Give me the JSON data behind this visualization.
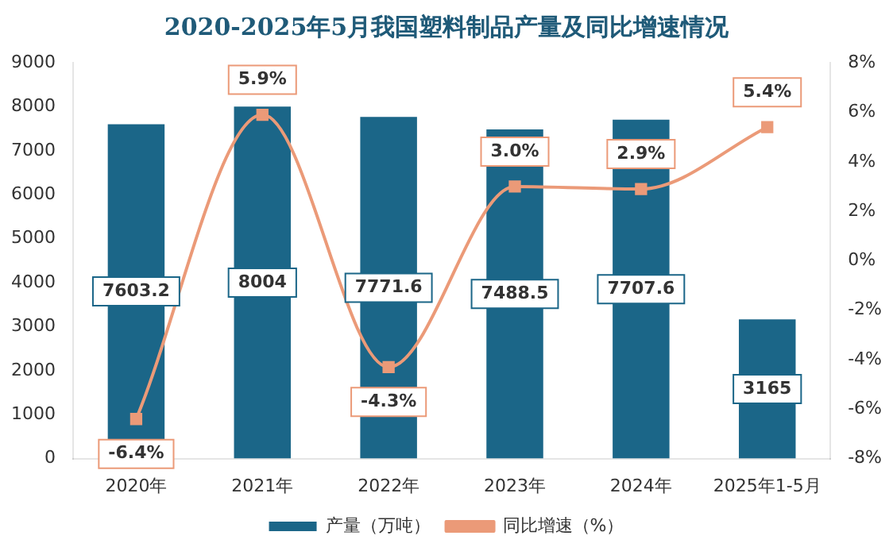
{
  "chart_data": {
    "type": "bar",
    "title": "2020-2025年5月我国塑料制品产量及同比增速情况",
    "categories": [
      "2020年",
      "2021年",
      "2022年",
      "2023年",
      "2024年",
      "2025年1-5月"
    ],
    "series": [
      {
        "name": "产量（万吨）",
        "color": "#1b6688",
        "values": [
          7603.2,
          8004,
          7771.6,
          7488.5,
          7707.6,
          3165
        ]
      },
      {
        "name": "同比增速（%）",
        "type": "line",
        "axis": "y2",
        "color": "#eb9a78",
        "marker": "square",
        "values": [
          -6.4,
          5.9,
          -4.3,
          3.0,
          2.9,
          5.4
        ],
        "value_labels": [
          "-6.4%",
          "5.9%",
          "-4.3%",
          "3.0%",
          "2.9%",
          "5.4%"
        ]
      }
    ],
    "data_labels": true,
    "ylim": [
      0,
      9000
    ],
    "yticks": [
      0,
      1000,
      2000,
      3000,
      4000,
      5000,
      6000,
      7000,
      8000,
      9000
    ],
    "y2lim": [
      -8,
      8
    ],
    "y2ticks": [
      {
        "value": -8,
        "label": "-8%"
      },
      {
        "value": -6,
        "label": "-6%"
      },
      {
        "value": -4,
        "label": "-4%"
      },
      {
        "value": -2,
        "label": "-2%"
      },
      {
        "value": 0,
        "label": "0%"
      },
      {
        "value": 2,
        "label": "2%"
      },
      {
        "value": 4,
        "label": "4%"
      },
      {
        "value": 6,
        "label": "6%"
      },
      {
        "value": 8,
        "label": "8%"
      }
    ],
    "grid": false,
    "legend": "bottom"
  }
}
